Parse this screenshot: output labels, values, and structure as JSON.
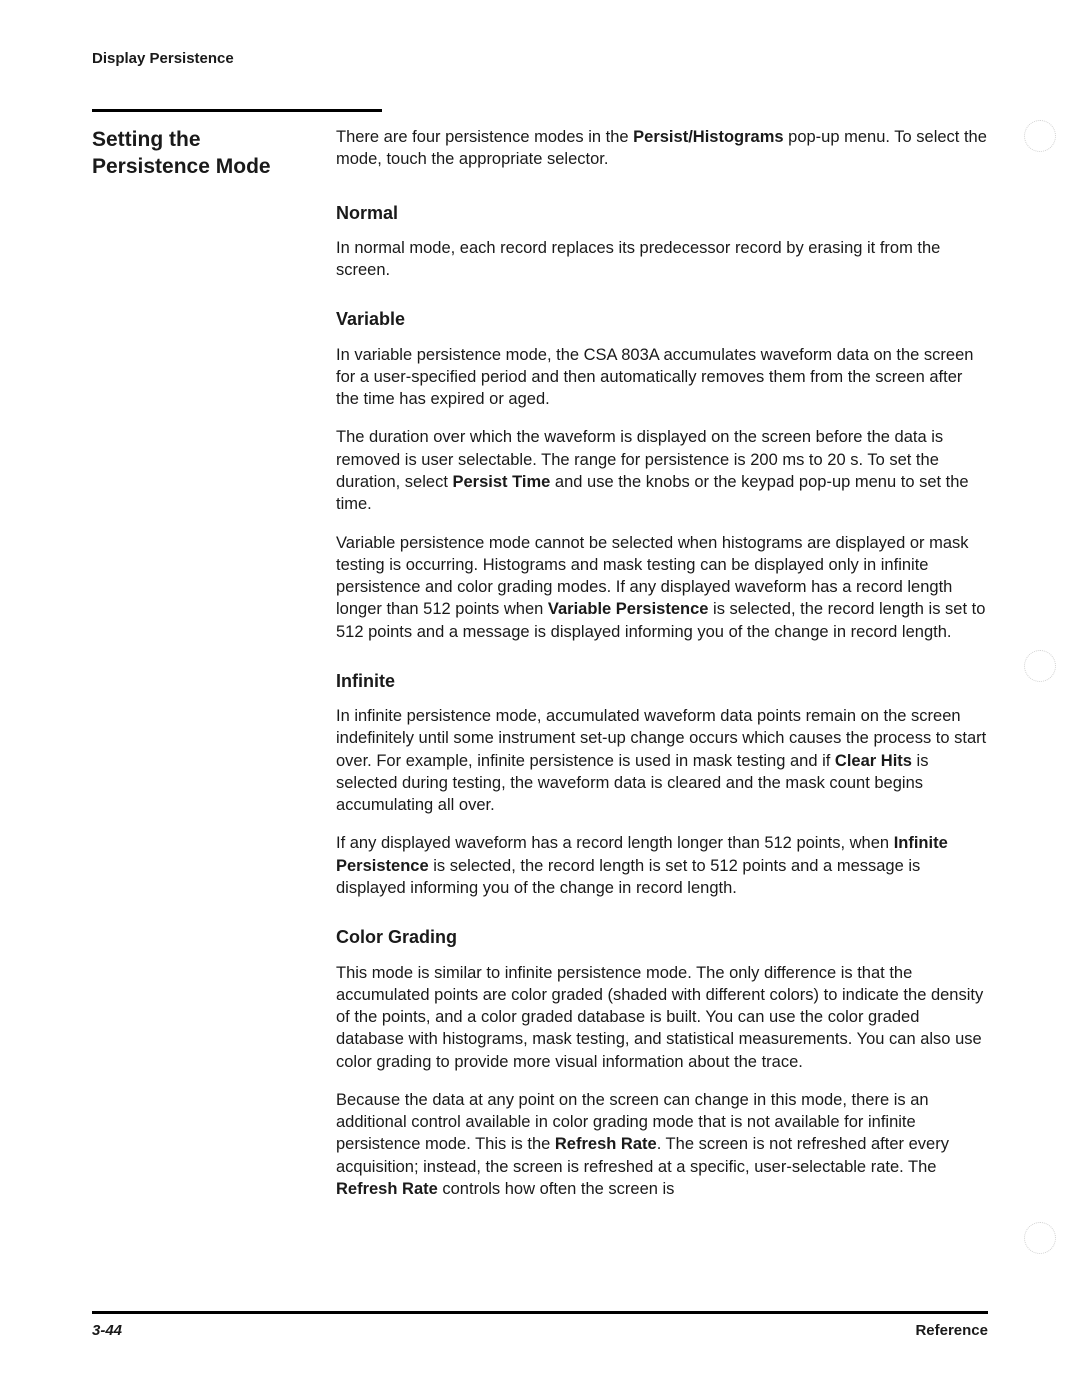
{
  "runningHead": "Display Persistence",
  "sideHeading": "Setting the Persistence Mode",
  "intro": {
    "pre": "There are four persistence modes in the ",
    "bold": "Persist/Histograms",
    "post": " pop-up menu. To select the mode, touch the appropriate selector."
  },
  "sections": {
    "normal": {
      "heading": "Normal",
      "p1": "In normal mode, each record replaces its predecessor record by erasing it from the screen."
    },
    "variable": {
      "heading": "Variable",
      "p1": "In variable persistence mode, the CSA 803A accumulates waveform data on the screen for a user-specified period and then automatically removes them from the screen after the time has expired or aged.",
      "p2": {
        "pre": "The duration over which the waveform is displayed on the screen before the data is removed is user selectable. The range for persistence is 200 ms to 20 s. To set the duration, select ",
        "bold": "Persist Time",
        "post": " and use the knobs or the keypad pop-up menu to set the time."
      },
      "p3": {
        "pre": "Variable persistence mode cannot be selected when histograms are displayed or mask testing is occurring. Histograms and mask testing can be displayed only in infinite persistence and color grading modes. If any displayed waveform has a record length longer than 512 points when ",
        "bold": "Variable Persistence",
        "post": " is selected, the record length is set to 512 points and a message is displayed informing you of the change in record length."
      }
    },
    "infinite": {
      "heading": "Infinite",
      "p1": {
        "pre": "In infinite persistence mode, accumulated waveform data points remain on the screen indefinitely until some instrument set-up change occurs which causes the process to start over. For example, infinite persistence is used in mask testing and if ",
        "bold": "Clear Hits",
        "post": " is selected during testing, the waveform data is cleared and the mask count begins accumulating all over."
      },
      "p2": {
        "pre": "If any displayed waveform has a record length longer than 512 points, when ",
        "bold": "Infinite Persistence",
        "post": " is selected, the record length is set to 512 points and a message is displayed informing you of the change in record length."
      }
    },
    "colorGrading": {
      "heading": "Color Grading",
      "p1": "This mode is similar to infinite persistence mode. The only difference is that the accumulated points are color graded (shaded with different colors) to indicate the density of the points, and a color graded database is built. You can use the color graded database with histograms, mask testing, and statistical measurements. You can also use color grading to provide more visual information about the trace.",
      "p2": {
        "pre": "Because the data at any point on the screen can change in this mode, there is an additional control available in color grading mode that is not available for infinite persistence mode. This is the ",
        "bold1": "Refresh Rate",
        "mid": ". The screen is not refreshed after every acquisition; instead, the screen is refreshed at a specific, user-selectable rate. The ",
        "bold2": "Refresh Rate",
        "post": " controls how often the screen is"
      }
    }
  },
  "footer": {
    "pageNumber": "3-44",
    "sectionLabel": "Reference"
  }
}
